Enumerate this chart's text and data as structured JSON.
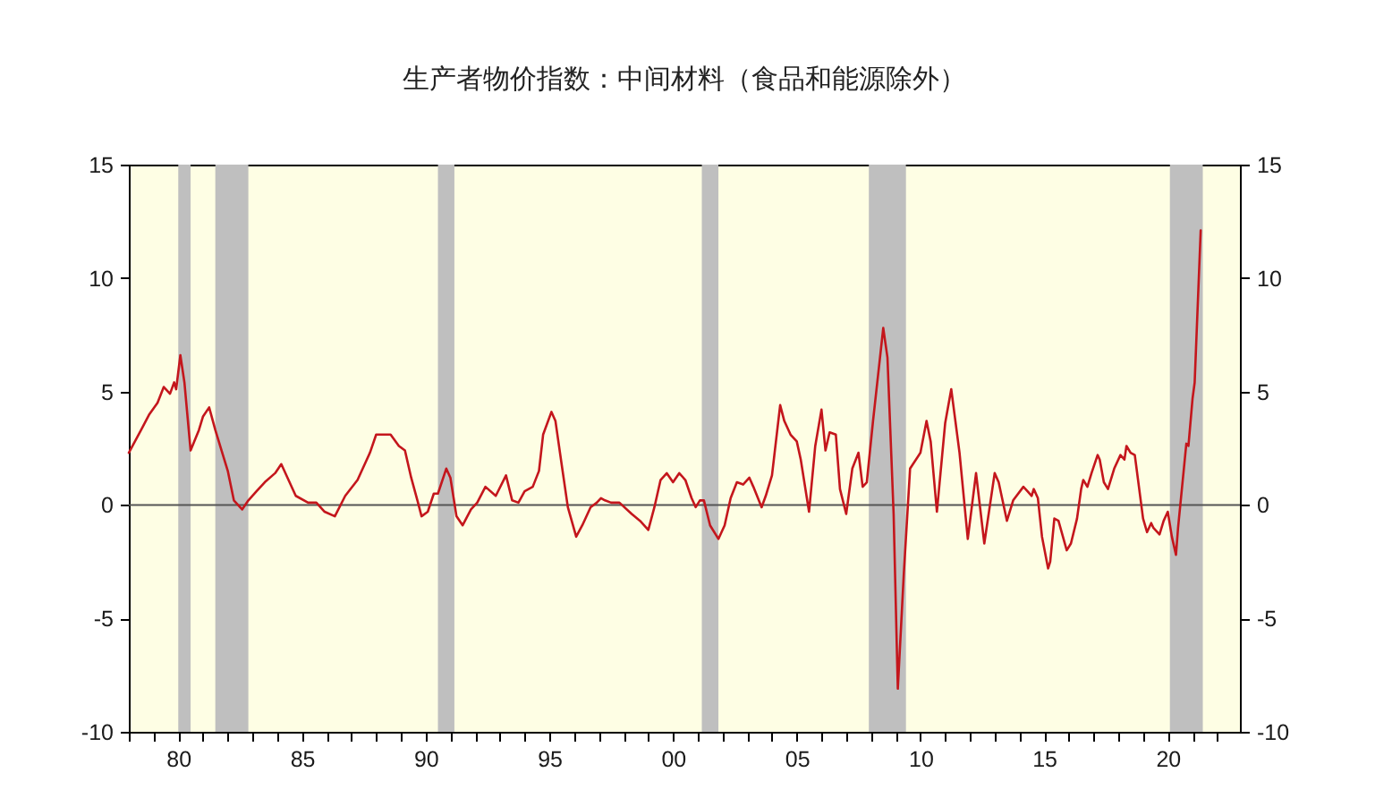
{
  "chart_data": {
    "type": "line",
    "title": "生产者物价指数：中间材料（食品和能源除外）",
    "x": [
      "1978-01",
      "1978-07",
      "1978-11",
      "1979-03",
      "1979-06",
      "1979-09",
      "1979-11",
      "1979-12",
      "1980-02",
      "1980-04",
      "1980-07",
      "1980-11",
      "1981-01",
      "1981-04",
      "1981-07",
      "1982-01",
      "1982-04",
      "1982-08",
      "1982-11",
      "1983-03",
      "1983-07",
      "1983-12",
      "1984-03",
      "1984-07",
      "1984-10",
      "1985-04",
      "1985-08",
      "1985-12",
      "1986-05",
      "1986-10",
      "1987-04",
      "1987-10",
      "1988-01",
      "1988-05",
      "1988-08",
      "1988-12",
      "1989-03",
      "1989-06",
      "1989-09",
      "1989-11",
      "1990-02",
      "1990-05",
      "1990-07",
      "1990-11",
      "1991-01",
      "1991-04",
      "1991-07",
      "1991-11",
      "1992-02",
      "1992-06",
      "1992-11",
      "1993-04",
      "1993-07",
      "1993-10",
      "1994-01",
      "1994-05",
      "1994-08",
      "1994-10",
      "1995-02",
      "1995-04",
      "1995-07",
      "1995-10",
      "1996-02",
      "1996-05",
      "1996-09",
      "1996-12",
      "1997-02",
      "1997-04",
      "1997-07",
      "1997-11",
      "1998-05",
      "1998-09",
      "1999-01",
      "1999-04",
      "1999-07",
      "1999-10",
      "2000-01",
      "2000-04",
      "2000-07",
      "2000-10",
      "2000-12",
      "2001-02",
      "2001-04",
      "2001-07",
      "2001-11",
      "2002-02",
      "2002-05",
      "2002-08",
      "2002-11",
      "2003-02",
      "2003-04",
      "2003-08",
      "2003-10",
      "2004-01",
      "2004-05",
      "2004-07",
      "2004-10",
      "2005-01",
      "2005-03",
      "2005-07",
      "2005-10",
      "2006-01",
      "2006-03",
      "2006-05",
      "2006-08",
      "2006-10",
      "2007-01",
      "2007-04",
      "2007-07",
      "2007-09",
      "2007-11",
      "2008-02",
      "2008-07",
      "2008-09",
      "2008-12",
      "2009-02",
      "2009-05",
      "2009-08",
      "2010-01",
      "2010-04",
      "2010-06",
      "2010-09",
      "2011-01",
      "2011-04",
      "2011-08",
      "2011-12",
      "2012-04",
      "2012-08",
      "2013-01",
      "2013-03",
      "2013-07",
      "2013-10",
      "2014-03",
      "2014-05",
      "2014-07",
      "2014-08",
      "2014-10",
      "2014-12",
      "2015-03",
      "2015-04",
      "2015-06",
      "2015-08",
      "2015-12",
      "2016-02",
      "2016-05",
      "2016-07",
      "2016-08",
      "2016-10",
      "2016-12",
      "2017-03",
      "2017-04",
      "2017-06",
      "2017-08",
      "2017-11",
      "2018-02",
      "2018-04",
      "2018-05",
      "2018-07",
      "2018-09",
      "2018-11",
      "2019-01",
      "2019-03",
      "2019-05",
      "2019-06",
      "2019-09",
      "2019-11",
      "2020-01",
      "2020-03",
      "2020-05",
      "2020-06",
      "2020-09",
      "2020-10",
      "2020-11",
      "2021-01",
      "2021-02",
      "2021-05"
    ],
    "series": [
      {
        "color": "#c4161c",
        "values": [
          2.3,
          3.3,
          4.0,
          4.5,
          5.2,
          4.9,
          5.4,
          5.1,
          6.6,
          5.4,
          2.4,
          3.3,
          3.9,
          4.3,
          3.3,
          1.5,
          0.2,
          -0.2,
          0.2,
          0.6,
          1.0,
          1.4,
          1.8,
          1.0,
          0.4,
          0.1,
          0.1,
          -0.3,
          -0.5,
          0.4,
          1.1,
          2.3,
          3.1,
          3.1,
          3.1,
          2.6,
          2.4,
          1.2,
          0.2,
          -0.5,
          -0.3,
          0.5,
          0.5,
          1.6,
          1.2,
          -0.5,
          -0.9,
          -0.2,
          0.1,
          0.8,
          0.4,
          1.3,
          0.2,
          0.1,
          0.6,
          0.8,
          1.5,
          3.1,
          4.1,
          3.7,
          1.8,
          -0.1,
          -1.4,
          -0.9,
          -0.1,
          0.1,
          0.3,
          0.2,
          0.1,
          0.1,
          -0.4,
          -0.7,
          -1.1,
          -0.1,
          1.1,
          1.4,
          1.0,
          1.4,
          1.1,
          0.3,
          -0.1,
          0.2,
          0.2,
          -0.9,
          -1.5,
          -0.9,
          0.3,
          1.0,
          0.9,
          1.2,
          0.8,
          -0.1,
          0.4,
          1.3,
          4.4,
          3.7,
          3.1,
          2.8,
          2.0,
          -0.3,
          2.6,
          4.2,
          2.4,
          3.2,
          3.1,
          0.7,
          -0.4,
          1.6,
          2.3,
          0.8,
          1.0,
          3.7,
          7.8,
          6.5,
          -0.4,
          -8.1,
          -3.0,
          1.6,
          2.3,
          3.7,
          2.8,
          -0.3,
          3.6,
          5.1,
          2.3,
          -1.5,
          1.4,
          -1.7,
          1.4,
          1.0,
          -0.7,
          0.2,
          0.8,
          0.6,
          0.4,
          0.7,
          0.3,
          -1.4,
          -2.8,
          -2.5,
          -0.6,
          -0.7,
          -2.0,
          -1.7,
          -0.6,
          0.7,
          1.1,
          0.8,
          1.4,
          2.2,
          2.0,
          1.0,
          0.7,
          1.6,
          2.2,
          2.0,
          2.6,
          2.3,
          2.2,
          0.8,
          -0.6,
          -1.2,
          -0.8,
          -1.0,
          -1.3,
          -0.7,
          -0.3,
          -1.4,
          -2.2,
          -1.0,
          1.8,
          2.7,
          2.6,
          4.7,
          5.4,
          12.1
        ]
      }
    ],
    "xlim": [
      "1978-01",
      "2022-12"
    ],
    "xticks": [
      {
        "value": "1978",
        "label": null
      },
      {
        "value": "1979",
        "label": null
      },
      {
        "value": "1980",
        "label": "80"
      },
      {
        "value": "1981",
        "label": null
      },
      {
        "value": "1982",
        "label": null
      },
      {
        "value": "1983",
        "label": null
      },
      {
        "value": "1984",
        "label": null
      },
      {
        "value": "1985",
        "label": "85"
      },
      {
        "value": "1986",
        "label": null
      },
      {
        "value": "1987",
        "label": null
      },
      {
        "value": "1988",
        "label": null
      },
      {
        "value": "1989",
        "label": null
      },
      {
        "value": "1990",
        "label": "90"
      },
      {
        "value": "1991",
        "label": null
      },
      {
        "value": "1992",
        "label": null
      },
      {
        "value": "1993",
        "label": null
      },
      {
        "value": "1994",
        "label": null
      },
      {
        "value": "1995",
        "label": "95"
      },
      {
        "value": "1996",
        "label": null
      },
      {
        "value": "1997",
        "label": null
      },
      {
        "value": "1998",
        "label": null
      },
      {
        "value": "1999",
        "label": null
      },
      {
        "value": "2000",
        "label": "00"
      },
      {
        "value": "2001",
        "label": null
      },
      {
        "value": "2002",
        "label": null
      },
      {
        "value": "2003",
        "label": null
      },
      {
        "value": "2004",
        "label": null
      },
      {
        "value": "2005",
        "label": "05"
      },
      {
        "value": "2006",
        "label": null
      },
      {
        "value": "2007",
        "label": null
      },
      {
        "value": "2008",
        "label": null
      },
      {
        "value": "2009",
        "label": null
      },
      {
        "value": "2010",
        "label": "10"
      },
      {
        "value": "2011",
        "label": null
      },
      {
        "value": "2012",
        "label": null
      },
      {
        "value": "2013",
        "label": null
      },
      {
        "value": "2014",
        "label": null
      },
      {
        "value": "2015",
        "label": "15"
      },
      {
        "value": "2016",
        "label": null
      },
      {
        "value": "2017",
        "label": null
      },
      {
        "value": "2018",
        "label": null
      },
      {
        "value": "2019",
        "label": null
      },
      {
        "value": "2020",
        "label": "20"
      },
      {
        "value": "2021",
        "label": null
      },
      {
        "value": "2022",
        "label": null
      }
    ],
    "ylim": [
      -10,
      15
    ],
    "yticks": [
      -10,
      -5,
      0,
      5,
      10,
      15
    ],
    "y2lim": [
      -10,
      15
    ],
    "y2ticks": [
      -10,
      -5,
      0,
      5,
      10,
      15
    ],
    "ref_lines": [
      {
        "axis": "y",
        "value": 0,
        "color": "#555555"
      }
    ],
    "bands": [
      {
        "axis": "x",
        "from": "1980-01",
        "to": "1980-07",
        "color": "#bfbfbf"
      },
      {
        "axis": "x",
        "from": "1981-07",
        "to": "1982-11",
        "color": "#bfbfbf"
      },
      {
        "axis": "x",
        "from": "1990-07",
        "to": "1991-03",
        "color": "#bfbfbf"
      },
      {
        "axis": "x",
        "from": "2001-03",
        "to": "2001-11",
        "color": "#bfbfbf"
      },
      {
        "axis": "x",
        "from": "2007-12",
        "to": "2009-06",
        "color": "#bfbfbf"
      },
      {
        "axis": "x",
        "from": "2020-02",
        "to": "2021-06",
        "color": "#bfbfbf"
      }
    ]
  }
}
